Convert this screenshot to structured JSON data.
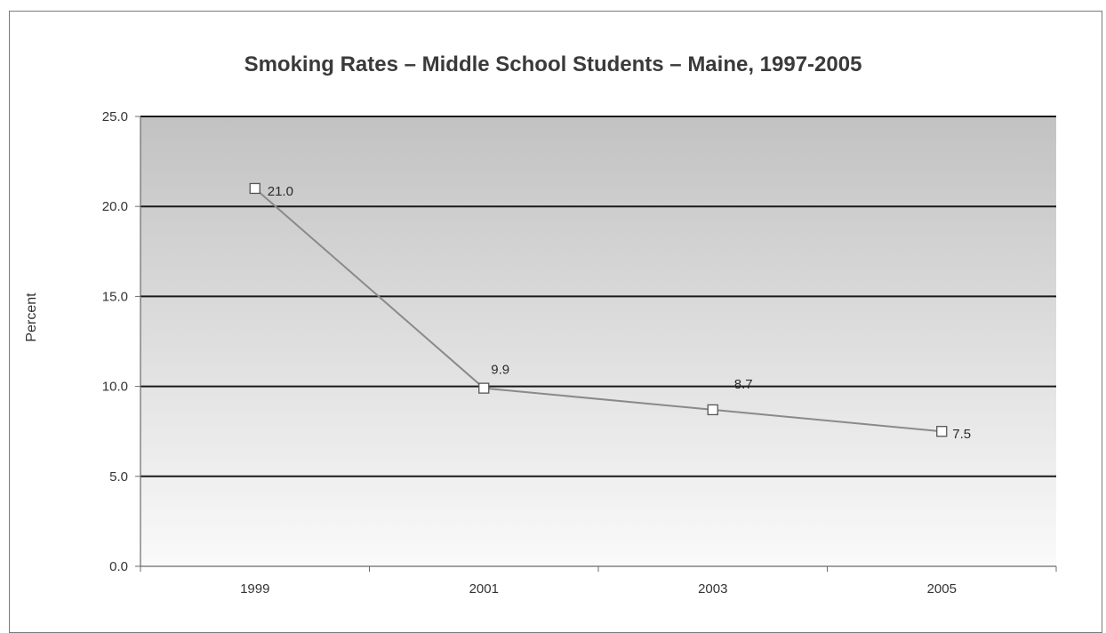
{
  "chart_data": {
    "type": "line",
    "title": "Smoking Rates – Middle School Students – Maine, 1997-2005",
    "xlabel": "",
    "ylabel": "Percent",
    "categories": [
      "1999",
      "2001",
      "2003",
      "2005"
    ],
    "series": [
      {
        "values": [
          21.0,
          9.9,
          8.7,
          7.5
        ],
        "data_labels": [
          "21.0",
          "9.9",
          "8.7",
          "7.5"
        ],
        "color": "#8a8a8a"
      }
    ],
    "ylim": [
      0,
      25
    ],
    "yticks": [
      "0.0",
      "5.0",
      "10.0",
      "15.0",
      "20.0",
      "25.0"
    ],
    "grid": true,
    "legend": "none",
    "background_gradient": [
      "#c2c2c2",
      "#fafafa"
    ]
  }
}
